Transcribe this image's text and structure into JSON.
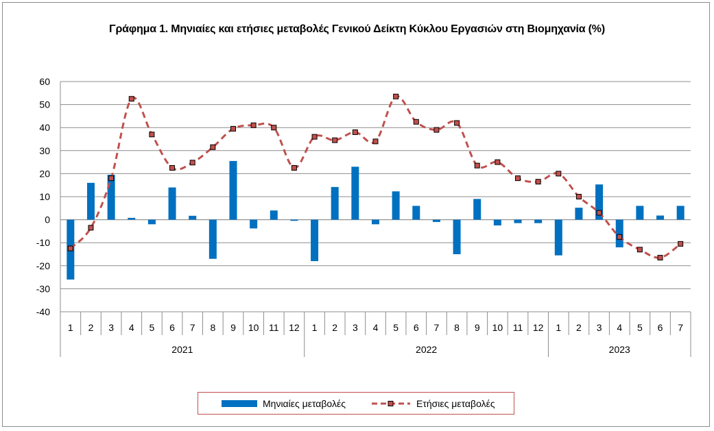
{
  "chart_data": {
    "type": "bar",
    "title": "Γράφημα 1. Μηνιαίες και ετήσιες μεταβολές  Γενικού Δείκτη Κύκλου Εργασιών στη Βιομηχανία (%)",
    "ylim": [
      -40,
      60
    ],
    "yticks": [
      60,
      50,
      40,
      30,
      20,
      10,
      0,
      -10,
      -20,
      -30,
      -40
    ],
    "grid": true,
    "legend_position": "bottom",
    "categories": [
      "1",
      "2",
      "3",
      "4",
      "5",
      "6",
      "7",
      "8",
      "9",
      "10",
      "11",
      "12",
      "1",
      "2",
      "3",
      "4",
      "5",
      "6",
      "7",
      "8",
      "9",
      "10",
      "11",
      "12",
      "1",
      "2",
      "3",
      "4",
      "5",
      "6",
      "7"
    ],
    "groups": [
      {
        "label": "2021",
        "count": 12
      },
      {
        "label": "2022",
        "count": 12
      },
      {
        "label": "2023",
        "count": 7
      }
    ],
    "series": [
      {
        "name": "Μηνιαίες μεταβολές",
        "type": "bar",
        "color": "#0070c0",
        "values": [
          -26,
          16,
          19.5,
          0.8,
          -2,
          14,
          1.7,
          -17,
          25.5,
          -3.8,
          4,
          -0.5,
          -18,
          14.2,
          23,
          -2,
          12.3,
          6,
          -1,
          -15,
          9,
          -2.5,
          -1.5,
          -1.5,
          -15.5,
          5.2,
          15.3,
          -12,
          6,
          1.8,
          6
        ]
      },
      {
        "name": "Ετήσιες μεταβολές",
        "type": "line",
        "color": "#c0504d",
        "values": [
          -12.5,
          -3.5,
          18,
          52.5,
          37,
          22.5,
          24.8,
          31.5,
          39.5,
          41,
          40,
          22.5,
          36,
          34.5,
          38,
          34,
          53.5,
          42.5,
          39,
          42,
          23.5,
          25,
          18,
          16.5,
          20,
          10,
          3,
          -7.5,
          -13,
          -16.5,
          -10.5
        ]
      }
    ]
  }
}
